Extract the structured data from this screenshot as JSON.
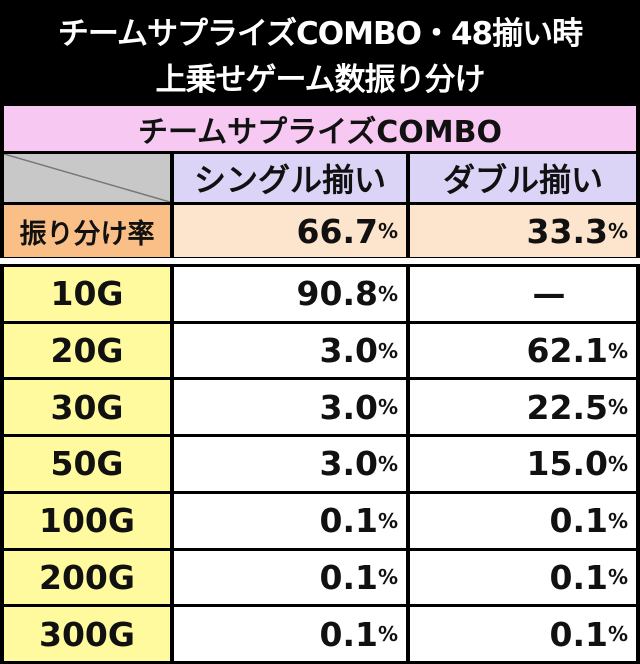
{
  "header": {
    "title_lines": [
      "チームサプライズCOMBO・48揃い時",
      "上乗せゲーム数振り分け"
    ]
  },
  "table": {
    "caption": "チームサプライズCOMBO",
    "columns": [
      "シングル揃い",
      "ダブル揃い"
    ],
    "rate_row": {
      "label": "振り分け率",
      "cells": [
        {
          "num": "66.7",
          "unit": "%"
        },
        {
          "num": "33.3",
          "unit": "%"
        }
      ]
    },
    "rows": [
      {
        "label": "10G",
        "cells": [
          {
            "num": "90.8",
            "unit": "%"
          },
          {
            "num": "—"
          }
        ]
      },
      {
        "label": "20G",
        "cells": [
          {
            "num": "3.0",
            "unit": "%"
          },
          {
            "num": "62.1",
            "unit": "%"
          }
        ]
      },
      {
        "label": "30G",
        "cells": [
          {
            "num": "3.0",
            "unit": "%"
          },
          {
            "num": "22.5",
            "unit": "%"
          }
        ]
      },
      {
        "label": "50G",
        "cells": [
          {
            "num": "3.0",
            "unit": "%"
          },
          {
            "num": "15.0",
            "unit": "%"
          }
        ]
      },
      {
        "label": "100G",
        "cells": [
          {
            "num": "0.1",
            "unit": "%"
          },
          {
            "num": "0.1",
            "unit": "%"
          }
        ]
      },
      {
        "label": "200G",
        "cells": [
          {
            "num": "0.1",
            "unit": "%"
          },
          {
            "num": "0.1",
            "unit": "%"
          }
        ]
      },
      {
        "label": "300G",
        "cells": [
          {
            "num": "0.1",
            "unit": "%"
          },
          {
            "num": "0.1",
            "unit": "%"
          }
        ]
      }
    ]
  }
}
